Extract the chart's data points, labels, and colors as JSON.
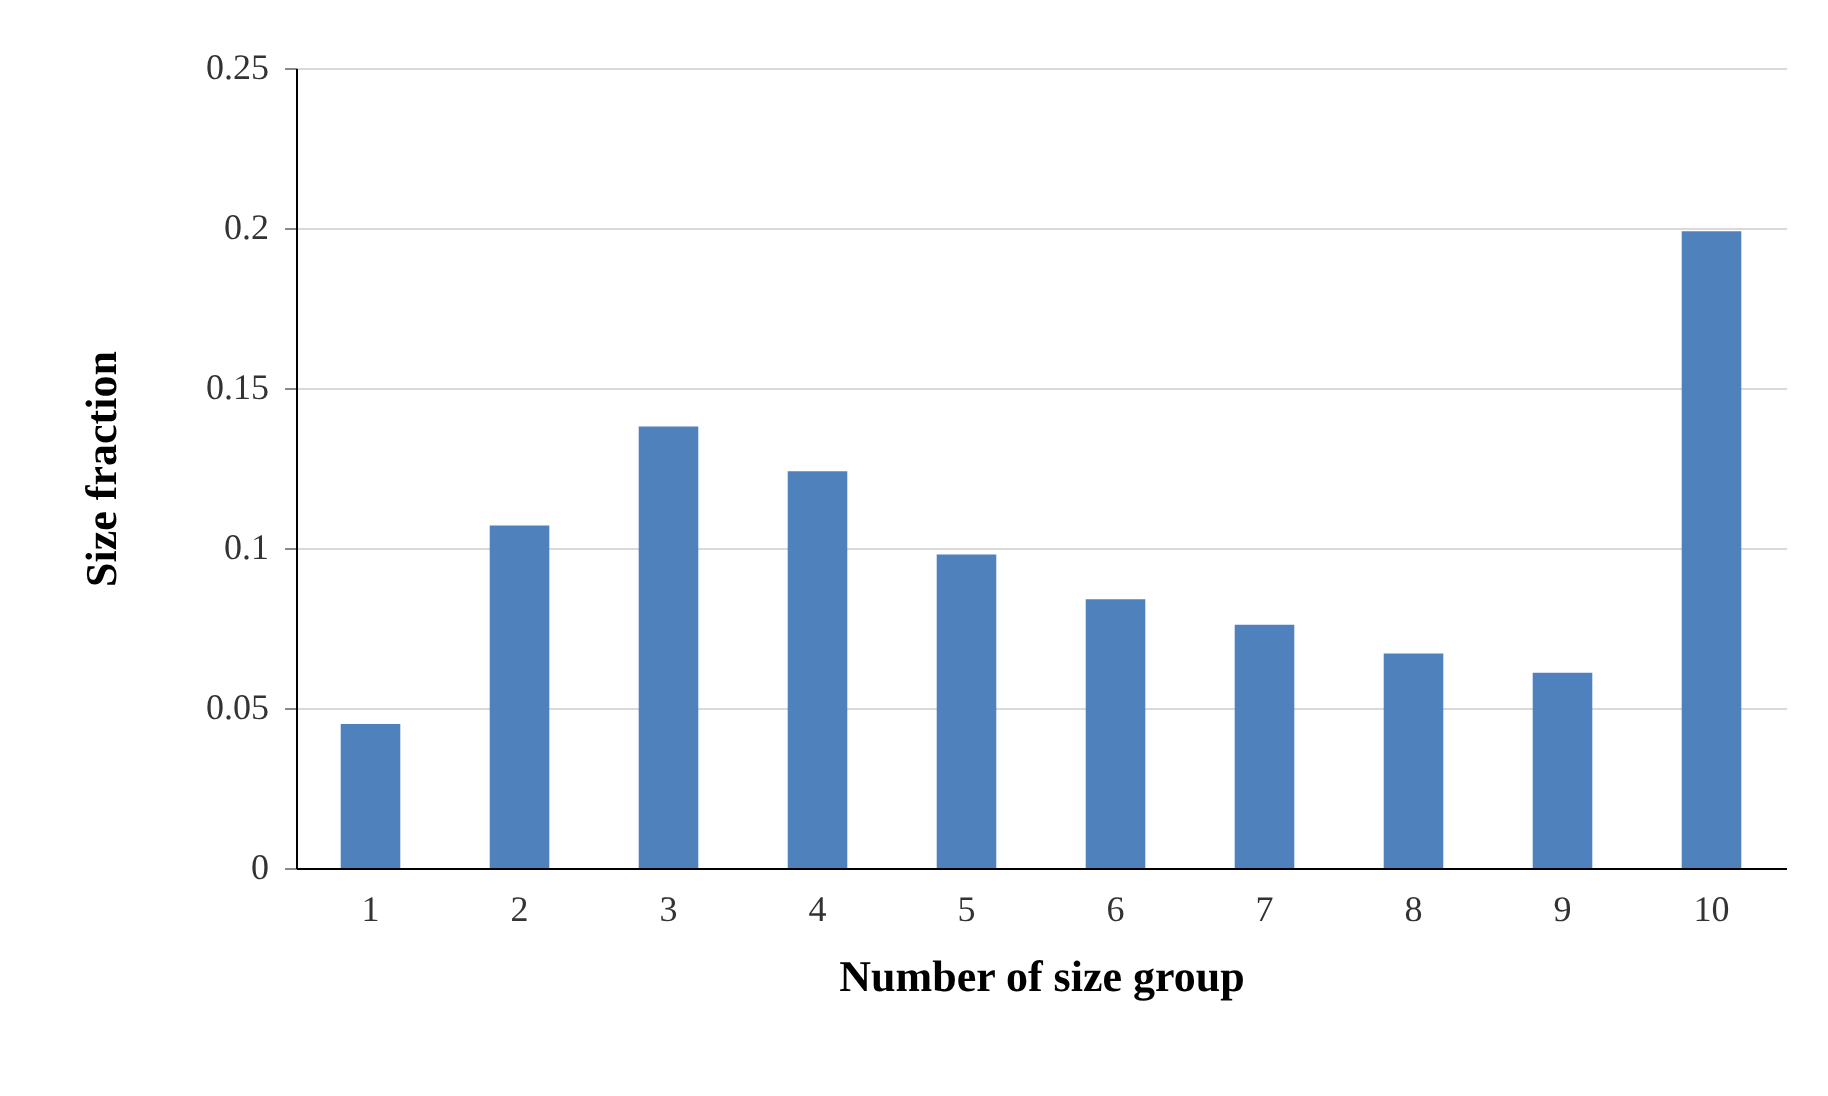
{
  "chart_data": {
    "type": "bar",
    "xlabel": "Number of size group",
    "ylabel": "Size fraction",
    "categories": [
      "1",
      "2",
      "3",
      "4",
      "5",
      "6",
      "7",
      "8",
      "9",
      "10"
    ],
    "values": [
      0.045,
      0.107,
      0.138,
      0.124,
      0.098,
      0.084,
      0.076,
      0.067,
      0.061,
      0.199
    ],
    "color": "#4f81bd",
    "ylim": [
      0,
      0.25
    ],
    "yticks": [
      0,
      0.05,
      0.1,
      0.15,
      0.2,
      0.25
    ],
    "grid": "y"
  }
}
